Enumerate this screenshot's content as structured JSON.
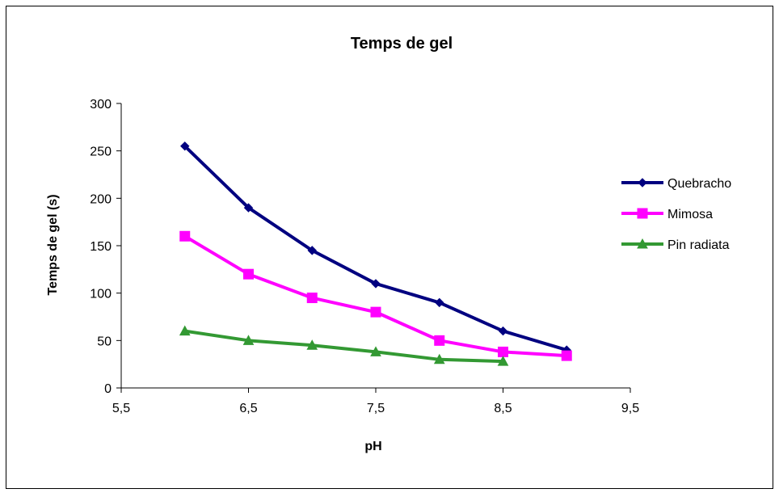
{
  "chart_data": {
    "type": "line",
    "title": "Temps de gel",
    "xlabel": "pH",
    "ylabel": "Temps de gel (s)",
    "xlim": [
      5.5,
      9.5
    ],
    "ylim": [
      0,
      300
    ],
    "x_ticks": [
      5.5,
      6.5,
      7.5,
      8.5,
      9.5
    ],
    "x_tick_labels": [
      "5,5",
      "6,5",
      "7,5",
      "8,5",
      "9,5"
    ],
    "y_ticks": [
      0,
      50,
      100,
      150,
      200,
      250,
      300
    ],
    "y_tick_labels": [
      "0",
      "50",
      "100",
      "150",
      "200",
      "250",
      "300"
    ],
    "grid": false,
    "legend_position": "right",
    "series": [
      {
        "name": "Quebracho",
        "color": "#000080",
        "marker": "diamond",
        "x": [
          6,
          6.5,
          7,
          7.5,
          8,
          8.5,
          9
        ],
        "values": [
          255,
          190,
          145,
          110,
          90,
          60,
          40
        ]
      },
      {
        "name": "Mimosa",
        "color": "#FF00FF",
        "marker": "square",
        "x": [
          6,
          6.5,
          7,
          7.5,
          8,
          8.5,
          9
        ],
        "values": [
          160,
          120,
          95,
          80,
          50,
          38,
          34
        ]
      },
      {
        "name": "Pin radiata",
        "color": "#339933",
        "marker": "triangle",
        "x": [
          6,
          6.5,
          7,
          7.5,
          8,
          8.5
        ],
        "values": [
          60,
          50,
          45,
          38,
          30,
          28
        ]
      }
    ]
  }
}
